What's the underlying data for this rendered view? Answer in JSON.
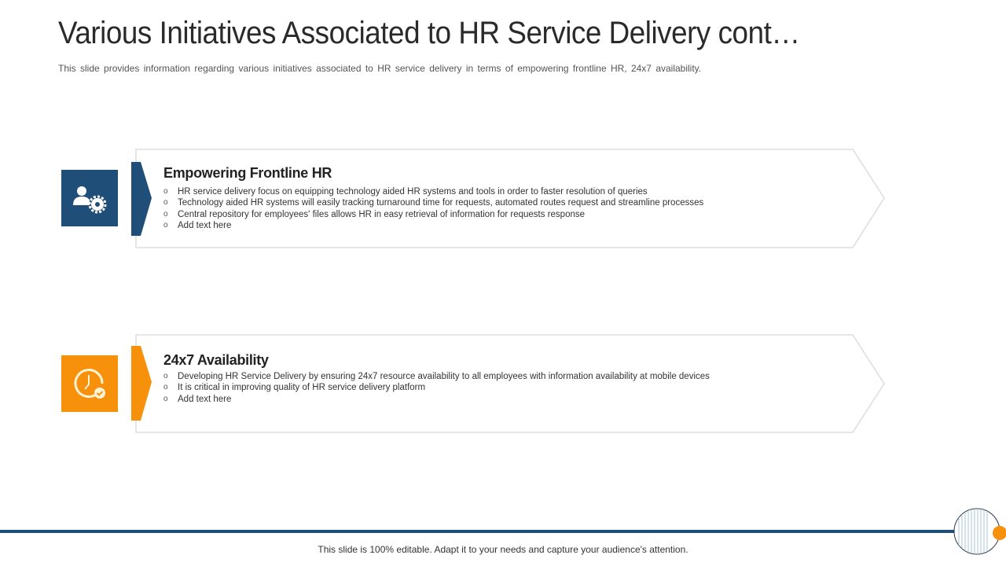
{
  "title": "Various Initiatives Associated to HR Service Delivery cont…",
  "subtitle": "This slide provides information regarding various initiatives associated to HR service delivery in terms of empowering frontline HR, 24x7 availability.",
  "initiatives": [
    {
      "title": "Empowering Frontline HR",
      "icon": "user-gear-icon",
      "color": "#1f4e79",
      "bullets": [
        "HR service delivery focus on equipping technology aided HR systems and tools in order to faster resolution of queries",
        "Technology aided HR systems will easily tracking turnaround time for requests, automated routes request and streamline processes",
        "Central repository for employees' files allows HR in easy retrieval of information for requests response",
        "Add text here"
      ]
    },
    {
      "title": "24x7 Availability",
      "icon": "clock-check-icon",
      "color": "#f7900a",
      "bullets": [
        "Developing HR Service Delivery by ensuring 24x7 resource availability to all employees with information availability at mobile devices",
        "It is critical in improving quality of HR service delivery platform",
        "Add text here"
      ]
    }
  ],
  "footer": "This slide is 100% editable. Adapt it to your needs and capture your audience's attention."
}
